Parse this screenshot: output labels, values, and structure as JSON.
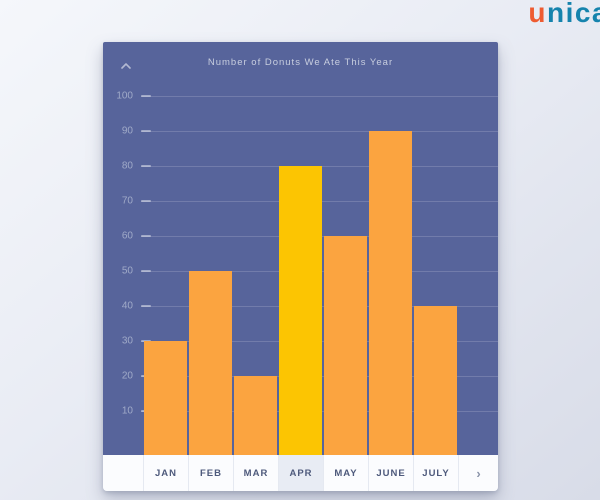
{
  "logo": {
    "prefix": "u",
    "suffix": "nica",
    "prefix_color": "#ee5b31",
    "suffix_color": "#1583ad"
  },
  "chart_data": {
    "type": "bar",
    "title": "Number of Donuts We Ate This Year",
    "categories": [
      "JAN",
      "FEB",
      "MAR",
      "APR",
      "MAY",
      "JUNE",
      "JULY"
    ],
    "values": [
      30,
      50,
      20,
      80,
      60,
      90,
      40
    ],
    "highlighted_category": "APR",
    "yticks": [
      100,
      90,
      80,
      70,
      60,
      50,
      40,
      30,
      20,
      10
    ],
    "ylim": [
      0,
      100
    ],
    "xlabel": "",
    "ylabel": "",
    "grid": true,
    "legend_position": "none",
    "bar_color": "#fba440",
    "highlight_color": "#fcc502",
    "background_color": "#57649b"
  },
  "controls": {
    "scroll_up_icon": "chevron-up",
    "next_icon": "chevron-right",
    "next_icon_glyph": "›"
  }
}
